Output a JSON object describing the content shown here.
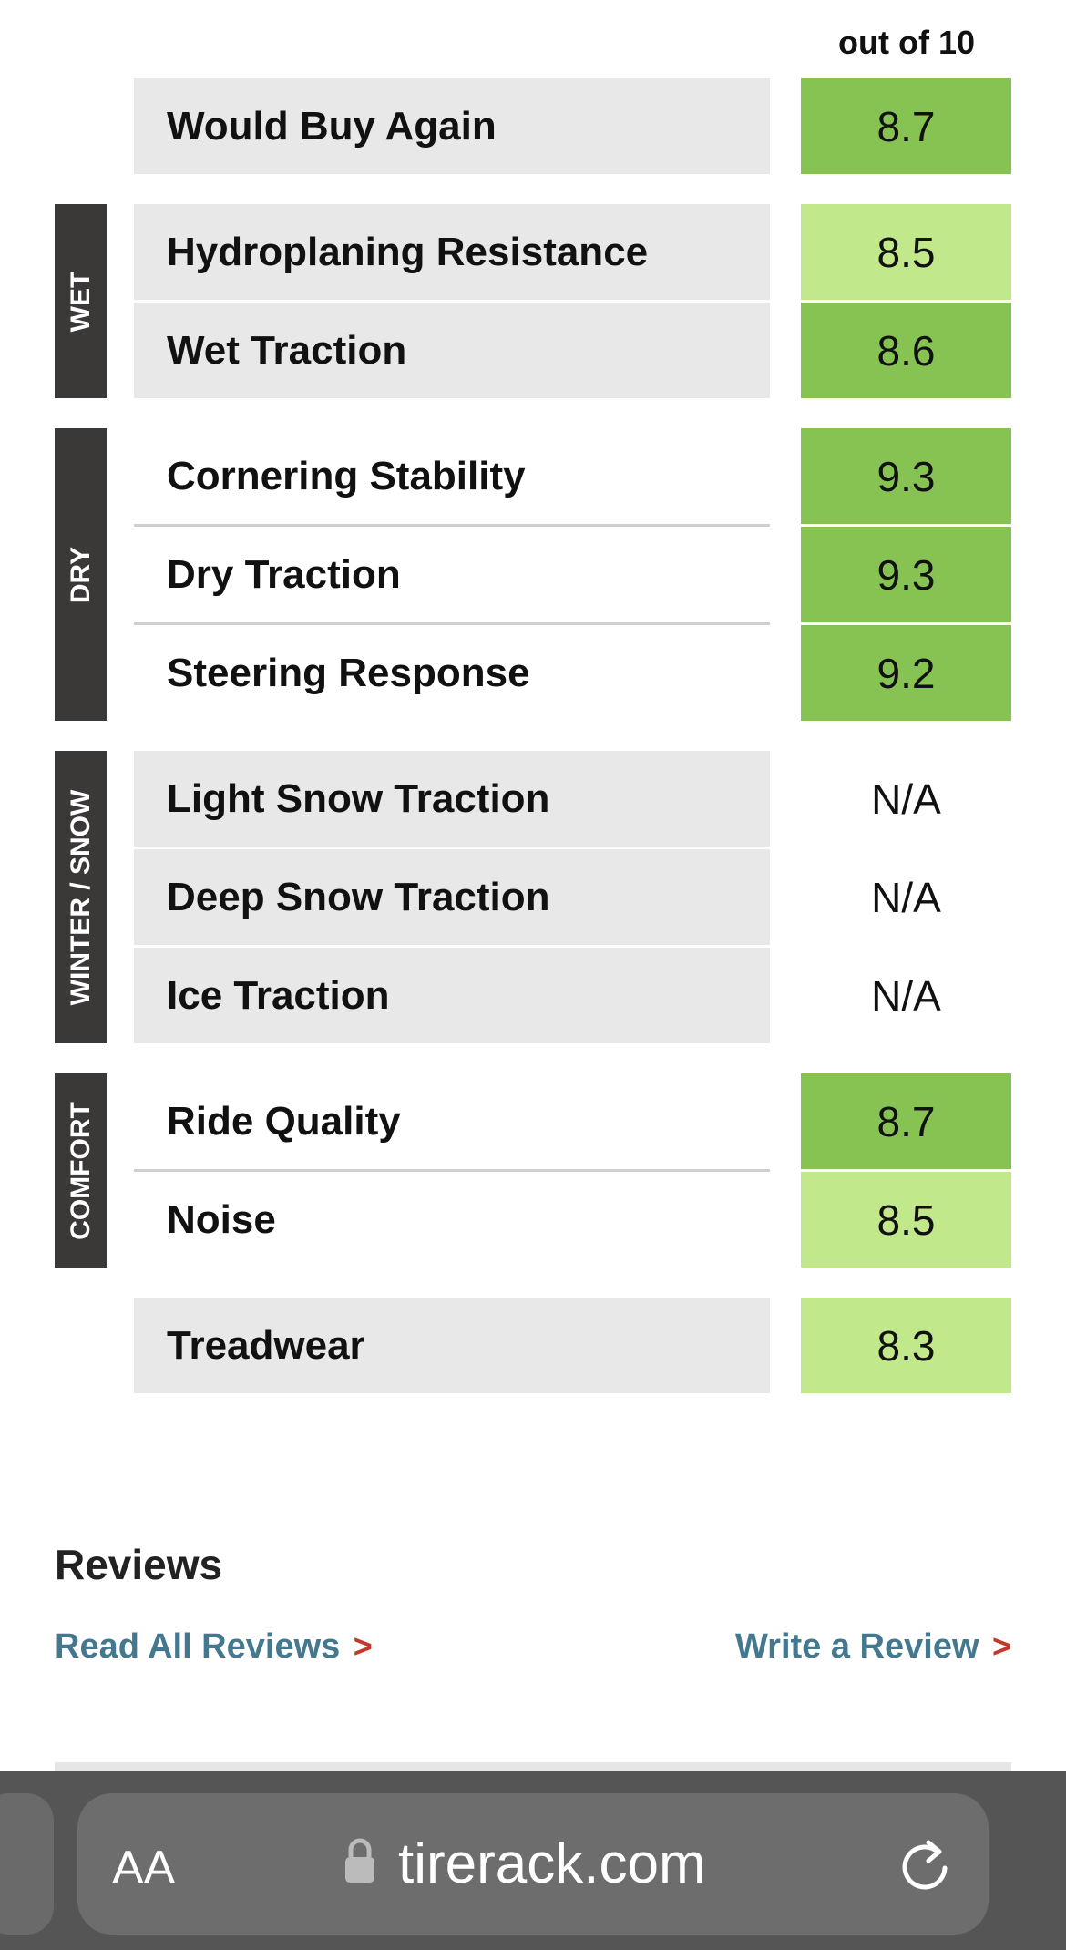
{
  "header": {
    "scale_note": "out of 10"
  },
  "groups": [
    {
      "rows": [
        {
          "name": "Would Buy Again",
          "score": 8.7,
          "color": "#86c352"
        }
      ]
    },
    {
      "label": "WET",
      "rows": [
        {
          "name": "Hydroplaning Resistance",
          "score": 8.5,
          "color": "#c2e88c"
        },
        {
          "name": "Wet Traction",
          "score": 8.6,
          "color": "#86c352"
        }
      ]
    },
    {
      "label": "DRY",
      "rows": [
        {
          "name": "Cornering Stability",
          "score": 9.3,
          "color": "#86c352"
        },
        {
          "name": "Dry Traction",
          "score": 9.3,
          "color": "#86c352"
        },
        {
          "name": "Steering Response",
          "score": 9.2,
          "color": "#86c352"
        }
      ]
    },
    {
      "label": "WINTER / SNOW",
      "rows": [
        {
          "name": "Light Snow Traction",
          "score": "N/A"
        },
        {
          "name": "Deep Snow Traction",
          "score": "N/A"
        },
        {
          "name": "Ice Traction",
          "score": "N/A"
        }
      ]
    },
    {
      "label": "COMFORT",
      "rows": [
        {
          "name": "Ride Quality",
          "score": 8.7,
          "color": "#86c352"
        },
        {
          "name": "Noise",
          "score": 8.5,
          "color": "#c2e88c"
        }
      ]
    },
    {
      "rows": [
        {
          "name": "Treadwear",
          "score": 8.3,
          "color": "#c2e88c"
        }
      ]
    }
  ],
  "reviews": {
    "title": "Reviews",
    "read_all": "Read All Reviews",
    "read_all_arrow": ">",
    "write": "Write a Review",
    "write_arrow": ">"
  },
  "browser_bar": {
    "text_size_button": "AA",
    "url": "tirerack.com"
  }
}
